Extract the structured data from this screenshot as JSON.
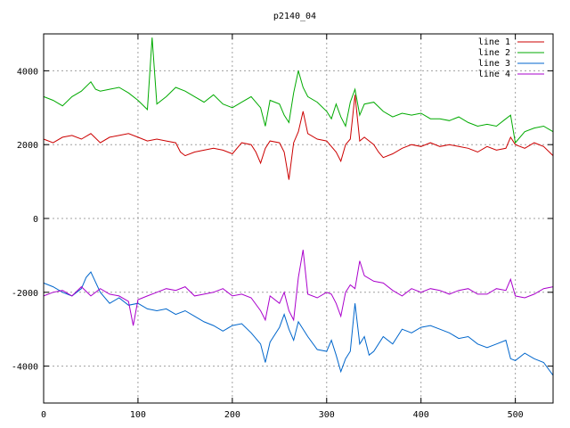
{
  "chart_data": {
    "type": "line",
    "title": "p2140_04",
    "xlabel": "",
    "ylabel": "",
    "xlim": [
      0,
      540
    ],
    "ylim": [
      -5000,
      5000
    ],
    "x_ticks": [
      0,
      100,
      200,
      300,
      400,
      500
    ],
    "y_ticks": [
      -4000,
      -2000,
      0,
      2000,
      4000
    ],
    "x_tick_labels": [
      "0",
      "100",
      "200",
      "300",
      "400",
      "500"
    ],
    "y_tick_labels": [
      "-4000",
      "-2000",
      "0",
      "2000",
      "4000"
    ],
    "grid": true,
    "legend_position": "top-right",
    "series": [
      {
        "name": "line 1",
        "color": "#cc0000",
        "points": [
          [
            0,
            2150
          ],
          [
            10,
            2050
          ],
          [
            20,
            2200
          ],
          [
            30,
            2250
          ],
          [
            40,
            2150
          ],
          [
            50,
            2300
          ],
          [
            60,
            2050
          ],
          [
            70,
            2200
          ],
          [
            80,
            2250
          ],
          [
            90,
            2300
          ],
          [
            100,
            2200
          ],
          [
            110,
            2100
          ],
          [
            120,
            2150
          ],
          [
            130,
            2100
          ],
          [
            140,
            2050
          ],
          [
            145,
            1800
          ],
          [
            150,
            1700
          ],
          [
            160,
            1800
          ],
          [
            170,
            1850
          ],
          [
            180,
            1900
          ],
          [
            190,
            1850
          ],
          [
            200,
            1750
          ],
          [
            210,
            2050
          ],
          [
            220,
            2000
          ],
          [
            225,
            1800
          ],
          [
            230,
            1500
          ],
          [
            235,
            1900
          ],
          [
            240,
            2100
          ],
          [
            250,
            2050
          ],
          [
            255,
            1800
          ],
          [
            260,
            1050
          ],
          [
            265,
            2050
          ],
          [
            270,
            2350
          ],
          [
            275,
            2900
          ],
          [
            280,
            2300
          ],
          [
            290,
            2150
          ],
          [
            300,
            2100
          ],
          [
            310,
            1800
          ],
          [
            315,
            1550
          ],
          [
            320,
            2000
          ],
          [
            325,
            2150
          ],
          [
            330,
            3350
          ],
          [
            335,
            2100
          ],
          [
            340,
            2200
          ],
          [
            350,
            2000
          ],
          [
            355,
            1800
          ],
          [
            360,
            1650
          ],
          [
            370,
            1750
          ],
          [
            380,
            1900
          ],
          [
            390,
            2000
          ],
          [
            400,
            1950
          ],
          [
            410,
            2050
          ],
          [
            420,
            1950
          ],
          [
            430,
            2000
          ],
          [
            440,
            1950
          ],
          [
            450,
            1900
          ],
          [
            460,
            1800
          ],
          [
            470,
            1950
          ],
          [
            480,
            1850
          ],
          [
            490,
            1900
          ],
          [
            495,
            2200
          ],
          [
            500,
            2000
          ],
          [
            510,
            1900
          ],
          [
            520,
            2050
          ],
          [
            530,
            1950
          ],
          [
            540,
            1700
          ]
        ]
      },
      {
        "name": "line 2",
        "color": "#00aa00",
        "points": [
          [
            0,
            3300
          ],
          [
            10,
            3200
          ],
          [
            20,
            3050
          ],
          [
            30,
            3300
          ],
          [
            40,
            3450
          ],
          [
            50,
            3700
          ],
          [
            55,
            3500
          ],
          [
            60,
            3450
          ],
          [
            70,
            3500
          ],
          [
            80,
            3550
          ],
          [
            90,
            3400
          ],
          [
            100,
            3200
          ],
          [
            110,
            2950
          ],
          [
            115,
            4900
          ],
          [
            120,
            3100
          ],
          [
            130,
            3300
          ],
          [
            140,
            3550
          ],
          [
            150,
            3450
          ],
          [
            160,
            3300
          ],
          [
            170,
            3150
          ],
          [
            180,
            3350
          ],
          [
            190,
            3100
          ],
          [
            200,
            3000
          ],
          [
            210,
            3150
          ],
          [
            220,
            3300
          ],
          [
            230,
            3000
          ],
          [
            235,
            2500
          ],
          [
            240,
            3200
          ],
          [
            250,
            3100
          ],
          [
            255,
            2800
          ],
          [
            260,
            2600
          ],
          [
            265,
            3400
          ],
          [
            270,
            4000
          ],
          [
            275,
            3550
          ],
          [
            280,
            3300
          ],
          [
            290,
            3150
          ],
          [
            300,
            2900
          ],
          [
            305,
            2700
          ],
          [
            310,
            3100
          ],
          [
            315,
            2750
          ],
          [
            320,
            2500
          ],
          [
            325,
            3150
          ],
          [
            330,
            3500
          ],
          [
            335,
            2800
          ],
          [
            340,
            3100
          ],
          [
            350,
            3150
          ],
          [
            360,
            2900
          ],
          [
            370,
            2750
          ],
          [
            380,
            2850
          ],
          [
            390,
            2800
          ],
          [
            400,
            2850
          ],
          [
            410,
            2700
          ],
          [
            420,
            2700
          ],
          [
            430,
            2650
          ],
          [
            440,
            2750
          ],
          [
            450,
            2600
          ],
          [
            460,
            2500
          ],
          [
            470,
            2550
          ],
          [
            480,
            2500
          ],
          [
            490,
            2700
          ],
          [
            495,
            2800
          ],
          [
            500,
            2050
          ],
          [
            510,
            2350
          ],
          [
            520,
            2450
          ],
          [
            530,
            2500
          ],
          [
            540,
            2350
          ]
        ]
      },
      {
        "name": "line 3",
        "color": "#0066cc",
        "points": [
          [
            0,
            -1750
          ],
          [
            10,
            -1850
          ],
          [
            20,
            -2000
          ],
          [
            30,
            -2100
          ],
          [
            40,
            -1900
          ],
          [
            45,
            -1600
          ],
          [
            50,
            -1450
          ],
          [
            60,
            -2000
          ],
          [
            70,
            -2300
          ],
          [
            80,
            -2150
          ],
          [
            90,
            -2350
          ],
          [
            100,
            -2300
          ],
          [
            110,
            -2450
          ],
          [
            120,
            -2500
          ],
          [
            130,
            -2450
          ],
          [
            140,
            -2600
          ],
          [
            150,
            -2500
          ],
          [
            160,
            -2650
          ],
          [
            170,
            -2800
          ],
          [
            180,
            -2900
          ],
          [
            190,
            -3050
          ],
          [
            200,
            -2900
          ],
          [
            210,
            -2850
          ],
          [
            220,
            -3100
          ],
          [
            230,
            -3400
          ],
          [
            235,
            -3900
          ],
          [
            240,
            -3350
          ],
          [
            250,
            -2950
          ],
          [
            255,
            -2600
          ],
          [
            260,
            -3000
          ],
          [
            265,
            -3300
          ],
          [
            270,
            -2800
          ],
          [
            280,
            -3200
          ],
          [
            290,
            -3550
          ],
          [
            300,
            -3600
          ],
          [
            305,
            -3300
          ],
          [
            310,
            -3700
          ],
          [
            315,
            -4150
          ],
          [
            320,
            -3800
          ],
          [
            325,
            -3600
          ],
          [
            330,
            -2300
          ],
          [
            335,
            -3400
          ],
          [
            340,
            -3200
          ],
          [
            345,
            -3700
          ],
          [
            350,
            -3600
          ],
          [
            360,
            -3200
          ],
          [
            370,
            -3400
          ],
          [
            380,
            -3000
          ],
          [
            390,
            -3100
          ],
          [
            400,
            -2950
          ],
          [
            410,
            -2900
          ],
          [
            420,
            -3000
          ],
          [
            430,
            -3100
          ],
          [
            440,
            -3250
          ],
          [
            450,
            -3200
          ],
          [
            460,
            -3400
          ],
          [
            470,
            -3500
          ],
          [
            480,
            -3400
          ],
          [
            490,
            -3300
          ],
          [
            495,
            -3800
          ],
          [
            500,
            -3850
          ],
          [
            510,
            -3650
          ],
          [
            520,
            -3800
          ],
          [
            530,
            -3900
          ],
          [
            540,
            -4250
          ]
        ]
      },
      {
        "name": "line 4",
        "color": "#aa00cc",
        "points": [
          [
            0,
            -2100
          ],
          [
            10,
            -2000
          ],
          [
            20,
            -1950
          ],
          [
            30,
            -2100
          ],
          [
            40,
            -1850
          ],
          [
            50,
            -2100
          ],
          [
            60,
            -1900
          ],
          [
            70,
            -2050
          ],
          [
            80,
            -2100
          ],
          [
            90,
            -2250
          ],
          [
            95,
            -2900
          ],
          [
            100,
            -2200
          ],
          [
            110,
            -2100
          ],
          [
            120,
            -2000
          ],
          [
            130,
            -1900
          ],
          [
            140,
            -1950
          ],
          [
            150,
            -1850
          ],
          [
            160,
            -2100
          ],
          [
            170,
            -2050
          ],
          [
            180,
            -2000
          ],
          [
            190,
            -1900
          ],
          [
            200,
            -2100
          ],
          [
            210,
            -2050
          ],
          [
            220,
            -2150
          ],
          [
            230,
            -2500
          ],
          [
            235,
            -2750
          ],
          [
            240,
            -2100
          ],
          [
            250,
            -2300
          ],
          [
            255,
            -2000
          ],
          [
            260,
            -2500
          ],
          [
            265,
            -2750
          ],
          [
            270,
            -1600
          ],
          [
            275,
            -850
          ],
          [
            280,
            -2050
          ],
          [
            290,
            -2150
          ],
          [
            300,
            -2000
          ],
          [
            305,
            -2050
          ],
          [
            310,
            -2300
          ],
          [
            315,
            -2650
          ],
          [
            320,
            -2000
          ],
          [
            325,
            -1800
          ],
          [
            330,
            -1900
          ],
          [
            335,
            -1150
          ],
          [
            340,
            -1550
          ],
          [
            350,
            -1700
          ],
          [
            360,
            -1750
          ],
          [
            370,
            -1950
          ],
          [
            380,
            -2100
          ],
          [
            390,
            -1900
          ],
          [
            400,
            -2000
          ],
          [
            410,
            -1900
          ],
          [
            420,
            -1950
          ],
          [
            430,
            -2050
          ],
          [
            440,
            -1950
          ],
          [
            450,
            -1900
          ],
          [
            460,
            -2050
          ],
          [
            470,
            -2050
          ],
          [
            480,
            -1900
          ],
          [
            490,
            -1950
          ],
          [
            495,
            -1650
          ],
          [
            500,
            -2100
          ],
          [
            510,
            -2150
          ],
          [
            520,
            -2050
          ],
          [
            530,
            -1900
          ],
          [
            540,
            -1850
          ]
        ]
      }
    ]
  }
}
